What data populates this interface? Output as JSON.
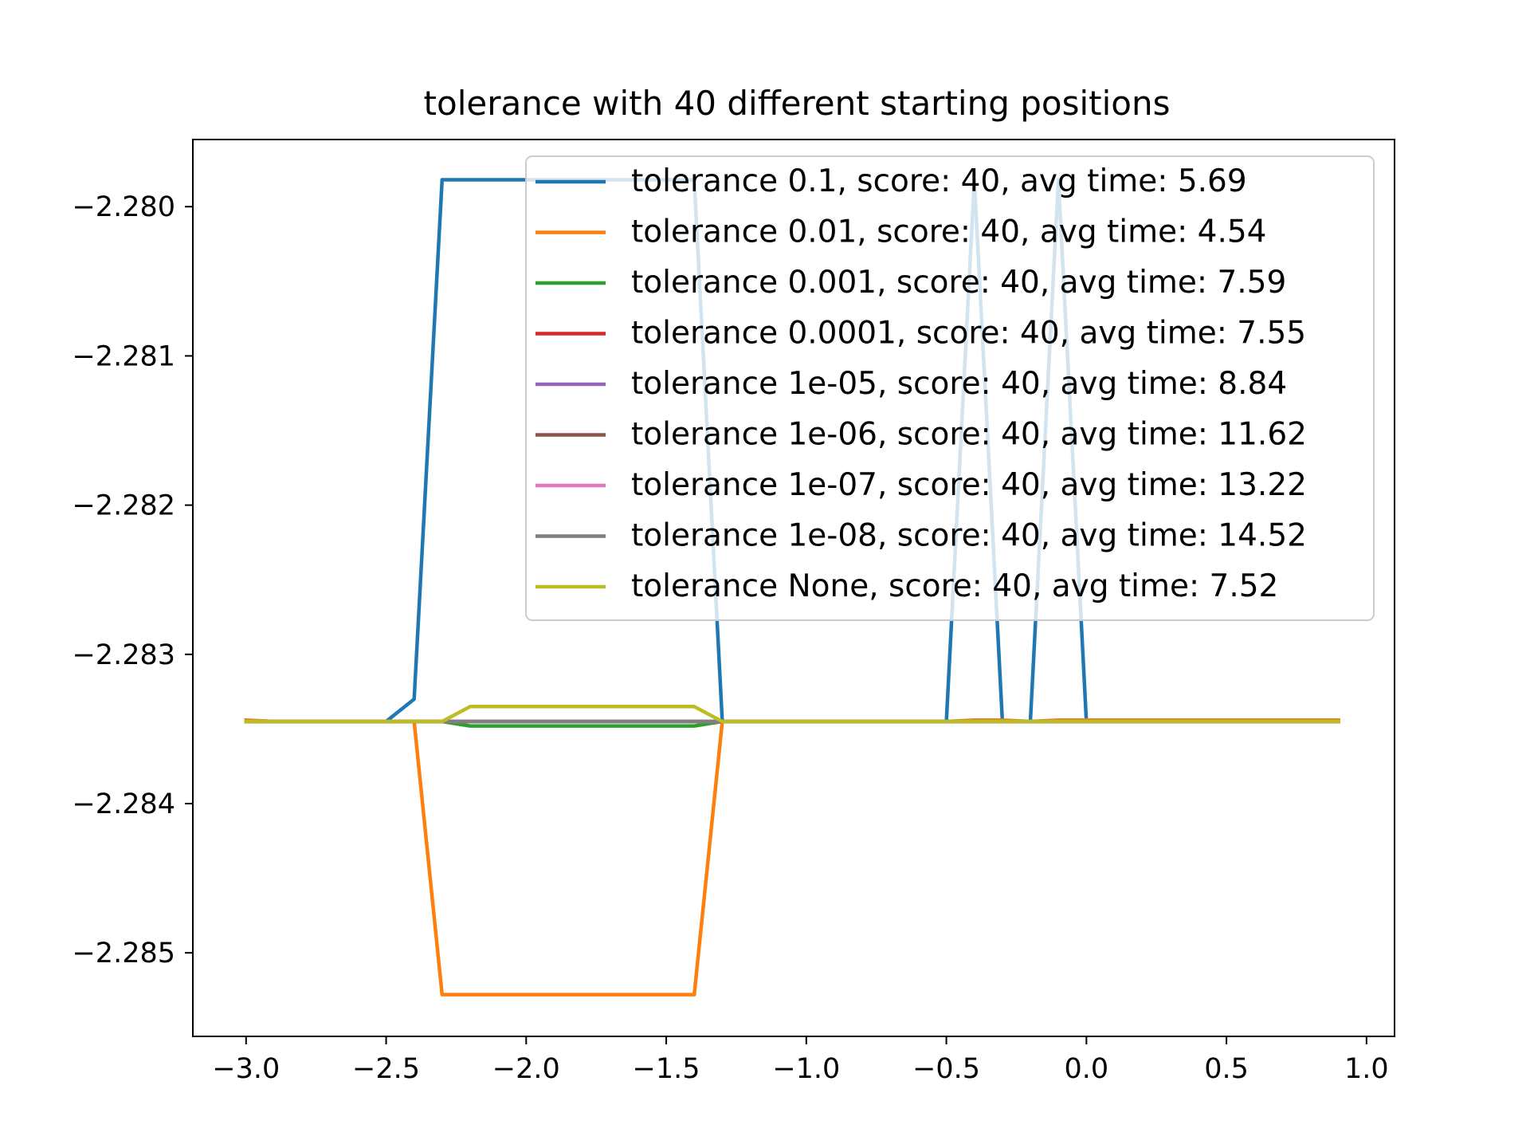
{
  "chart_data": {
    "type": "line",
    "title": "tolerance with 40 different starting positions",
    "xlabel": "",
    "ylabel": "",
    "xlim": [
      -3.19,
      1.1
    ],
    "ylim": [
      -2.28556,
      -2.27955
    ],
    "xticks": [
      -3.0,
      -2.5,
      -2.0,
      -1.5,
      -1.0,
      -0.5,
      0.0,
      0.5,
      1.0
    ],
    "xtick_labels": [
      "−3.0",
      "−2.5",
      "−2.0",
      "−1.5",
      "−1.0",
      "−0.5",
      "0.0",
      "0.5",
      "1.0"
    ],
    "yticks": [
      -2.28,
      -2.281,
      -2.282,
      -2.283,
      -2.284,
      -2.285
    ],
    "ytick_labels": [
      "−2.280",
      "−2.281",
      "−2.282",
      "−2.283",
      "−2.284",
      "−2.285"
    ],
    "grid": false,
    "legend_position": "top-right",
    "x": [
      -3.0,
      -2.9,
      -2.8,
      -2.7,
      -2.6,
      -2.5,
      -2.4,
      -2.3,
      -2.2,
      -2.1,
      -2.0,
      -1.9,
      -1.8,
      -1.7,
      -1.6,
      -1.5,
      -1.4,
      -1.3,
      -1.2,
      -1.1,
      -1.0,
      -0.9,
      -0.8,
      -0.7,
      -0.6,
      -0.5,
      -0.4,
      -0.3,
      -0.2,
      -0.1,
      0.0,
      0.1,
      0.2,
      0.3,
      0.4,
      0.5,
      0.6,
      0.7,
      0.8,
      0.9
    ],
    "series": [
      {
        "name": "tolerance 0.1, score: 40, avg time: 5.69",
        "color": "#1f77b4",
        "values": [
          -2.28345,
          -2.28345,
          -2.28345,
          -2.28345,
          -2.28345,
          -2.28345,
          -2.2833,
          -2.27982,
          -2.27982,
          -2.27982,
          -2.27982,
          -2.27982,
          -2.27982,
          -2.27982,
          -2.27982,
          -2.27982,
          -2.27982,
          -2.28345,
          -2.28345,
          -2.28345,
          -2.28345,
          -2.28345,
          -2.28345,
          -2.28345,
          -2.28345,
          -2.28345,
          -2.27982,
          -2.28345,
          -2.28345,
          -2.27982,
          -2.28345,
          -2.28345,
          -2.28345,
          -2.28345,
          -2.28345,
          -2.28345,
          -2.28345,
          -2.28345,
          -2.28345,
          -2.28345
        ]
      },
      {
        "name": "tolerance 0.01, score: 40, avg time: 4.54",
        "color": "#ff7f0e",
        "values": [
          -2.28344,
          -2.28345,
          -2.28345,
          -2.28345,
          -2.28345,
          -2.28345,
          -2.28345,
          -2.28528,
          -2.28528,
          -2.28528,
          -2.28528,
          -2.28528,
          -2.28528,
          -2.28528,
          -2.28528,
          -2.28528,
          -2.28528,
          -2.28345,
          -2.28345,
          -2.28345,
          -2.28345,
          -2.28345,
          -2.28345,
          -2.28345,
          -2.28345,
          -2.28345,
          -2.28344,
          -2.28344,
          -2.28345,
          -2.28344,
          -2.28344,
          -2.28344,
          -2.28344,
          -2.28344,
          -2.28344,
          -2.28344,
          -2.28344,
          -2.28344,
          -2.28344,
          -2.28344
        ]
      },
      {
        "name": "tolerance 0.001, score: 40, avg time: 7.59",
        "color": "#2ca02c",
        "values": [
          -2.28345,
          -2.28345,
          -2.28345,
          -2.28345,
          -2.28345,
          -2.28345,
          -2.28345,
          -2.28345,
          -2.28348,
          -2.28348,
          -2.28348,
          -2.28348,
          -2.28348,
          -2.28348,
          -2.28348,
          -2.28348,
          -2.28348,
          -2.28345,
          -2.28345,
          -2.28345,
          -2.28345,
          -2.28345,
          -2.28345,
          -2.28345,
          -2.28345,
          -2.28345,
          -2.28345,
          -2.28345,
          -2.28345,
          -2.28345,
          -2.28345,
          -2.28345,
          -2.28345,
          -2.28345,
          -2.28345,
          -2.28345,
          -2.28345,
          -2.28345,
          -2.28345,
          -2.28345
        ]
      },
      {
        "name": "tolerance 0.0001, score: 40, avg time: 7.55",
        "color": "#d62728",
        "values": [
          -2.28345,
          -2.28345,
          -2.28345,
          -2.28345,
          -2.28345,
          -2.28345,
          -2.28345,
          -2.28345,
          -2.28345,
          -2.28345,
          -2.28345,
          -2.28345,
          -2.28345,
          -2.28345,
          -2.28345,
          -2.28345,
          -2.28345,
          -2.28345,
          -2.28345,
          -2.28345,
          -2.28345,
          -2.28345,
          -2.28345,
          -2.28345,
          -2.28345,
          -2.28345,
          -2.28345,
          -2.28345,
          -2.28345,
          -2.28345,
          -2.28345,
          -2.28345,
          -2.28345,
          -2.28345,
          -2.28345,
          -2.28345,
          -2.28345,
          -2.28345,
          -2.28345,
          -2.28345
        ]
      },
      {
        "name": "tolerance 1e-05, score: 40, avg time: 8.84",
        "color": "#9467bd",
        "values": [
          -2.28345,
          -2.28345,
          -2.28345,
          -2.28345,
          -2.28345,
          -2.28345,
          -2.28345,
          -2.28345,
          -2.28345,
          -2.28345,
          -2.28345,
          -2.28345,
          -2.28345,
          -2.28345,
          -2.28345,
          -2.28345,
          -2.28345,
          -2.28345,
          -2.28345,
          -2.28345,
          -2.28345,
          -2.28345,
          -2.28345,
          -2.28345,
          -2.28345,
          -2.28345,
          -2.28345,
          -2.28345,
          -2.28345,
          -2.28345,
          -2.28345,
          -2.28345,
          -2.28345,
          -2.28345,
          -2.28345,
          -2.28345,
          -2.28345,
          -2.28345,
          -2.28345,
          -2.28345
        ]
      },
      {
        "name": "tolerance 1e-06, score: 40, avg time: 11.62",
        "color": "#8c564b",
        "values": [
          -2.28345,
          -2.28345,
          -2.28345,
          -2.28345,
          -2.28345,
          -2.28345,
          -2.28345,
          -2.28345,
          -2.28345,
          -2.28345,
          -2.28345,
          -2.28345,
          -2.28345,
          -2.28345,
          -2.28345,
          -2.28345,
          -2.28345,
          -2.28345,
          -2.28345,
          -2.28345,
          -2.28345,
          -2.28345,
          -2.28345,
          -2.28345,
          -2.28345,
          -2.28345,
          -2.28345,
          -2.28345,
          -2.28345,
          -2.28345,
          -2.28345,
          -2.28345,
          -2.28345,
          -2.28345,
          -2.28345,
          -2.28345,
          -2.28345,
          -2.28345,
          -2.28345,
          -2.28345
        ]
      },
      {
        "name": "tolerance 1e-07, score: 40, avg time: 13.22",
        "color": "#e377c2",
        "values": [
          -2.28345,
          -2.28345,
          -2.28345,
          -2.28345,
          -2.28345,
          -2.28345,
          -2.28345,
          -2.28345,
          -2.28345,
          -2.28345,
          -2.28345,
          -2.28345,
          -2.28345,
          -2.28345,
          -2.28345,
          -2.28345,
          -2.28345,
          -2.28345,
          -2.28345,
          -2.28345,
          -2.28345,
          -2.28345,
          -2.28345,
          -2.28345,
          -2.28345,
          -2.28345,
          -2.28345,
          -2.28345,
          -2.28345,
          -2.28345,
          -2.28345,
          -2.28345,
          -2.28345,
          -2.28345,
          -2.28345,
          -2.28345,
          -2.28345,
          -2.28345,
          -2.28345,
          -2.28345
        ]
      },
      {
        "name": "tolerance 1e-08, score: 40, avg time: 14.52",
        "color": "#7f7f7f",
        "values": [
          -2.28345,
          -2.28345,
          -2.28345,
          -2.28345,
          -2.28345,
          -2.28345,
          -2.28345,
          -2.28345,
          -2.28345,
          -2.28345,
          -2.28345,
          -2.28345,
          -2.28345,
          -2.28345,
          -2.28345,
          -2.28345,
          -2.28345,
          -2.28345,
          -2.28345,
          -2.28345,
          -2.28345,
          -2.28345,
          -2.28345,
          -2.28345,
          -2.28345,
          -2.28345,
          -2.28345,
          -2.28345,
          -2.28345,
          -2.28345,
          -2.28345,
          -2.28345,
          -2.28345,
          -2.28345,
          -2.28345,
          -2.28345,
          -2.28345,
          -2.28345,
          -2.28345,
          -2.28345
        ]
      },
      {
        "name": "tolerance None, score: 40, avg time: 7.52",
        "color": "#bcbd22",
        "values": [
          -2.28345,
          -2.28345,
          -2.28345,
          -2.28345,
          -2.28345,
          -2.28345,
          -2.28345,
          -2.28345,
          -2.28335,
          -2.28335,
          -2.28335,
          -2.28335,
          -2.28335,
          -2.28335,
          -2.28335,
          -2.28335,
          -2.28335,
          -2.28345,
          -2.28345,
          -2.28345,
          -2.28345,
          -2.28345,
          -2.28345,
          -2.28345,
          -2.28345,
          -2.28345,
          -2.28345,
          -2.28345,
          -2.28345,
          -2.28345,
          -2.28345,
          -2.28345,
          -2.28345,
          -2.28345,
          -2.28345,
          -2.28345,
          -2.28345,
          -2.28345,
          -2.28345,
          -2.28345
        ]
      }
    ]
  }
}
